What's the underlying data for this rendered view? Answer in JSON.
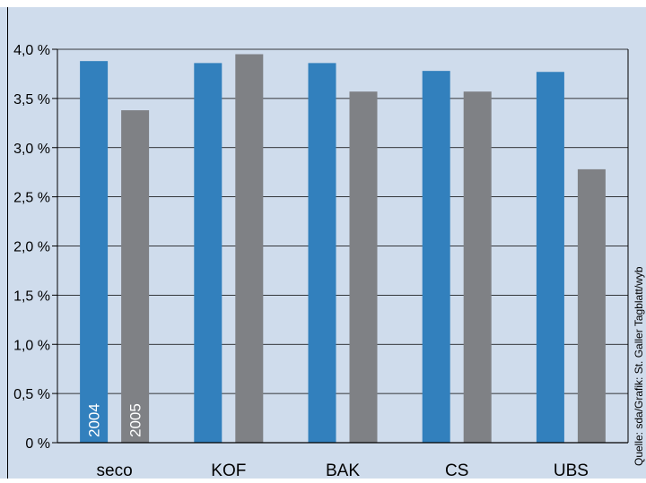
{
  "chart_data": {
    "type": "bar",
    "title": "",
    "categories": [
      "seco",
      "KOF",
      "BAK",
      "CS",
      "UBS"
    ],
    "series": [
      {
        "name": "2004",
        "values": [
          3.88,
          3.86,
          3.86,
          3.78,
          3.77
        ],
        "color": "#3280bd"
      },
      {
        "name": "2005",
        "values": [
          3.38,
          3.95,
          3.57,
          3.57,
          2.78
        ],
        "color": "#7f8185"
      }
    ],
    "yticks": [
      "0 %",
      "0,5 %",
      "1,0 %",
      "1,5 %",
      "2,0 %",
      "2,5 %",
      "3,0 %",
      "3,5 %",
      "4,0 %"
    ],
    "ylim": [
      0,
      4.0
    ],
    "grid": true,
    "legend": "inside-first-bars",
    "source": "Quelle: sda/Grafik: St. Galler Tagblatt/wyb",
    "background": "#cfdcec"
  }
}
